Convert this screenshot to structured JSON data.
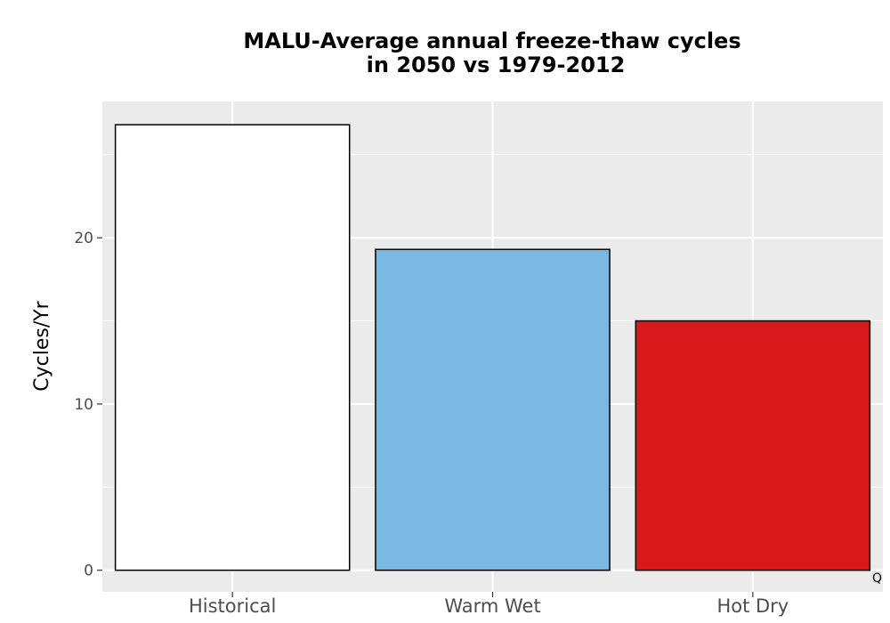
{
  "chart_data": {
    "type": "bar",
    "title": [
      "MALU-Average annual freeze-thaw cycles",
      "in 2050 vs 1979-2012"
    ],
    "ylabel": "Cycles/Yr",
    "xlabel": "",
    "categories": [
      "Historical",
      "Warm Wet",
      "Hot Dry"
    ],
    "values": [
      26.8,
      19.3,
      15.0
    ],
    "colors": [
      "#ffffff",
      "#78b8e1",
      "#d7191c"
    ],
    "bar_outline": "#000000",
    "panel_background": "#ebebeb",
    "grid": true,
    "ylim": [
      -1.3,
      28.2
    ],
    "yticks": [
      0,
      10,
      20
    ],
    "ytick_labels": [
      "0",
      "10",
      "20"
    ],
    "legend": "none"
  },
  "annotations": {
    "corner_note": "Q"
  }
}
